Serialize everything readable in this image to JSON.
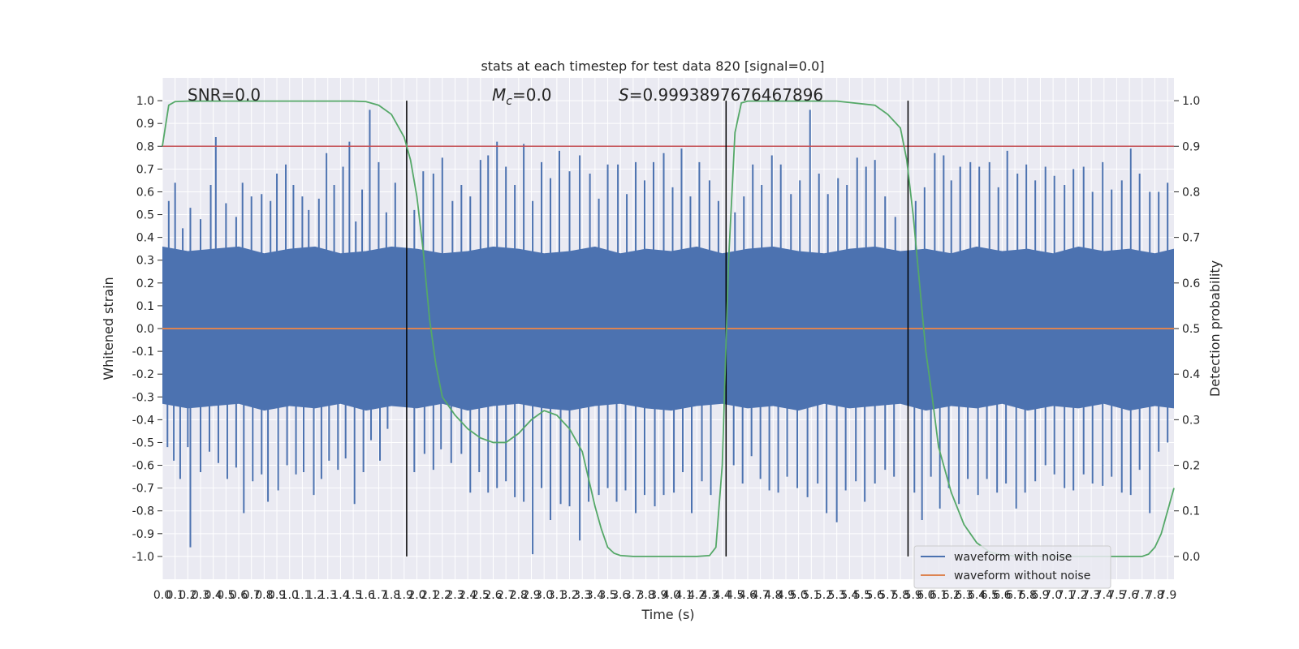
{
  "chart_data": {
    "type": "line",
    "title": "stats at each timestep for test data 820 [signal=0.0]",
    "xlabel": "Time (s)",
    "ylabel": "Whitened strain",
    "y2label": "Detection probability",
    "xlim": [
      0.0,
      7.95
    ],
    "ylim": [
      -1.1,
      1.1
    ],
    "y2lim": [
      -0.05,
      1.05
    ],
    "x_ticks": [
      "0.0",
      "0.1",
      "0.2",
      "0.3",
      "0.4",
      "0.5",
      "0.6",
      "0.7",
      "0.8",
      "0.9",
      "1.0",
      "1.1",
      "1.2",
      "1.3",
      "1.4",
      "1.5",
      "1.6",
      "1.7",
      "1.8",
      "1.9",
      "2.0",
      "2.1",
      "2.2",
      "2.3",
      "2.4",
      "2.5",
      "2.6",
      "2.7",
      "2.8",
      "2.9",
      "3.0",
      "3.1",
      "3.2",
      "3.3",
      "3.4",
      "3.5",
      "3.6",
      "3.7",
      "3.8",
      "3.9",
      "4.0",
      "4.1",
      "4.2",
      "4.3",
      "4.4",
      "4.5",
      "4.6",
      "4.7",
      "4.8",
      "4.9",
      "5.0",
      "5.1",
      "5.2",
      "5.3",
      "5.4",
      "5.5",
      "5.6",
      "5.7",
      "5.8",
      "5.9",
      "6.0",
      "6.1",
      "6.2",
      "6.3",
      "6.4",
      "6.5",
      "6.6",
      "6.7",
      "6.8",
      "6.9",
      "7.0",
      "7.1",
      "7.2",
      "7.3",
      "7.4",
      "7.5",
      "7.6",
      "7.7",
      "7.8",
      "7.9"
    ],
    "y_ticks": [
      "1.0",
      "0.9",
      "0.8",
      "0.7",
      "0.6",
      "0.5",
      "0.4",
      "0.3",
      "0.2",
      "0.1",
      "0.0",
      "-0.1",
      "-0.2",
      "-0.3",
      "-0.4",
      "-0.5",
      "-0.6",
      "-0.7",
      "-0.8",
      "-0.9",
      "-1.0"
    ],
    "y2_ticks": [
      "1.0",
      "0.9",
      "0.8",
      "0.7",
      "0.6",
      "0.5",
      "0.4",
      "0.3",
      "0.2",
      "0.1",
      "0.0"
    ],
    "annotations": {
      "snr": "SNR=0.0",
      "mc_symbol": "M",
      "mc_sub": "c",
      "mc_value": "=0.0",
      "s_symbol": "S",
      "s_value": "=0.9993897676467896"
    },
    "threshold": {
      "axis": "y2",
      "value": 0.9,
      "color": "#c44e52"
    },
    "vlines": [
      1.92,
      4.43,
      5.86
    ],
    "noise_envelope": {
      "x": [
        0.0,
        0.2,
        0.4,
        0.6,
        0.8,
        1.0,
        1.2,
        1.4,
        1.6,
        1.8,
        2.0,
        2.2,
        2.4,
        2.6,
        2.8,
        3.0,
        3.2,
        3.4,
        3.6,
        3.8,
        4.0,
        4.2,
        4.4,
        4.6,
        4.8,
        5.0,
        5.2,
        5.4,
        5.6,
        5.8,
        6.0,
        6.2,
        6.4,
        6.6,
        6.8,
        7.0,
        7.2,
        7.4,
        7.6,
        7.8,
        7.95
      ],
      "upper": [
        0.36,
        0.34,
        0.35,
        0.36,
        0.33,
        0.35,
        0.36,
        0.33,
        0.34,
        0.36,
        0.35,
        0.33,
        0.34,
        0.36,
        0.35,
        0.33,
        0.34,
        0.36,
        0.33,
        0.35,
        0.34,
        0.36,
        0.33,
        0.35,
        0.36,
        0.34,
        0.33,
        0.35,
        0.36,
        0.34,
        0.35,
        0.33,
        0.36,
        0.34,
        0.35,
        0.33,
        0.36,
        0.34,
        0.35,
        0.33,
        0.35
      ],
      "lower": [
        -0.33,
        -0.35,
        -0.34,
        -0.33,
        -0.36,
        -0.34,
        -0.35,
        -0.33,
        -0.36,
        -0.34,
        -0.35,
        -0.33,
        -0.36,
        -0.34,
        -0.33,
        -0.35,
        -0.36,
        -0.34,
        -0.33,
        -0.35,
        -0.36,
        -0.34,
        -0.33,
        -0.35,
        -0.34,
        -0.36,
        -0.33,
        -0.35,
        -0.34,
        -0.33,
        -0.36,
        -0.34,
        -0.35,
        -0.33,
        -0.36,
        -0.34,
        -0.35,
        -0.33,
        -0.36,
        -0.34,
        -0.35
      ]
    },
    "noise_spikes_up": [
      [
        0.05,
        0.56
      ],
      [
        0.1,
        0.64
      ],
      [
        0.16,
        0.44
      ],
      [
        0.22,
        0.53
      ],
      [
        0.3,
        0.48
      ],
      [
        0.38,
        0.63
      ],
      [
        0.42,
        0.84
      ],
      [
        0.5,
        0.55
      ],
      [
        0.58,
        0.49
      ],
      [
        0.63,
        0.64
      ],
      [
        0.7,
        0.58
      ],
      [
        0.78,
        0.59
      ],
      [
        0.85,
        0.56
      ],
      [
        0.9,
        0.68
      ],
      [
        0.97,
        0.72
      ],
      [
        1.03,
        0.63
      ],
      [
        1.1,
        0.58
      ],
      [
        1.15,
        0.52
      ],
      [
        1.23,
        0.57
      ],
      [
        1.29,
        0.77
      ],
      [
        1.35,
        0.63
      ],
      [
        1.42,
        0.71
      ],
      [
        1.47,
        0.82
      ],
      [
        1.52,
        0.47
      ],
      [
        1.57,
        0.61
      ],
      [
        1.63,
        0.96
      ],
      [
        1.7,
        0.73
      ],
      [
        1.76,
        0.51
      ],
      [
        1.83,
        0.64
      ],
      [
        1.98,
        0.52
      ],
      [
        2.05,
        0.69
      ],
      [
        2.13,
        0.68
      ],
      [
        2.2,
        0.75
      ],
      [
        2.28,
        0.56
      ],
      [
        2.35,
        0.63
      ],
      [
        2.42,
        0.58
      ],
      [
        2.5,
        0.74
      ],
      [
        2.56,
        0.76
      ],
      [
        2.63,
        0.82
      ],
      [
        2.7,
        0.71
      ],
      [
        2.77,
        0.63
      ],
      [
        2.84,
        0.81
      ],
      [
        2.91,
        0.56
      ],
      [
        2.98,
        0.73
      ],
      [
        3.05,
        0.66
      ],
      [
        3.12,
        0.78
      ],
      [
        3.2,
        0.69
      ],
      [
        3.28,
        0.76
      ],
      [
        3.36,
        0.68
      ],
      [
        3.43,
        0.57
      ],
      [
        3.5,
        0.72
      ],
      [
        3.58,
        0.72
      ],
      [
        3.65,
        0.59
      ],
      [
        3.72,
        0.73
      ],
      [
        3.79,
        0.65
      ],
      [
        3.86,
        0.73
      ],
      [
        3.94,
        0.77
      ],
      [
        4.01,
        0.62
      ],
      [
        4.08,
        0.79
      ],
      [
        4.15,
        0.58
      ],
      [
        4.22,
        0.73
      ],
      [
        4.3,
        0.65
      ],
      [
        4.37,
        0.56
      ],
      [
        4.5,
        0.51
      ],
      [
        4.57,
        0.58
      ],
      [
        4.64,
        0.72
      ],
      [
        4.71,
        0.63
      ],
      [
        4.79,
        0.76
      ],
      [
        4.86,
        0.72
      ],
      [
        4.94,
        0.59
      ],
      [
        5.01,
        0.65
      ],
      [
        5.09,
        0.96
      ],
      [
        5.16,
        0.68
      ],
      [
        5.23,
        0.59
      ],
      [
        5.31,
        0.66
      ],
      [
        5.38,
        0.63
      ],
      [
        5.46,
        0.75
      ],
      [
        5.53,
        0.71
      ],
      [
        5.6,
        0.74
      ],
      [
        5.68,
        0.58
      ],
      [
        5.76,
        0.49
      ],
      [
        5.92,
        0.56
      ],
      [
        5.99,
        0.62
      ],
      [
        6.07,
        0.77
      ],
      [
        6.14,
        0.76
      ],
      [
        6.2,
        0.65
      ],
      [
        6.27,
        0.71
      ],
      [
        6.35,
        0.73
      ],
      [
        6.42,
        0.71
      ],
      [
        6.5,
        0.73
      ],
      [
        6.57,
        0.62
      ],
      [
        6.64,
        0.78
      ],
      [
        6.72,
        0.68
      ],
      [
        6.79,
        0.72
      ],
      [
        6.86,
        0.65
      ],
      [
        6.94,
        0.71
      ],
      [
        7.01,
        0.67
      ],
      [
        7.09,
        0.63
      ],
      [
        7.16,
        0.7
      ],
      [
        7.24,
        0.71
      ],
      [
        7.31,
        0.6
      ],
      [
        7.39,
        0.73
      ],
      [
        7.46,
        0.61
      ],
      [
        7.54,
        0.65
      ],
      [
        7.61,
        0.79
      ],
      [
        7.68,
        0.68
      ],
      [
        7.76,
        0.6
      ],
      [
        7.83,
        0.6
      ],
      [
        7.9,
        0.64
      ]
    ],
    "noise_spikes_down": [
      [
        0.04,
        -0.52
      ],
      [
        0.09,
        -0.58
      ],
      [
        0.14,
        -0.66
      ],
      [
        0.2,
        -0.52
      ],
      [
        0.22,
        -0.96
      ],
      [
        0.3,
        -0.63
      ],
      [
        0.37,
        -0.54
      ],
      [
        0.44,
        -0.59
      ],
      [
        0.51,
        -0.66
      ],
      [
        0.58,
        -0.61
      ],
      [
        0.64,
        -0.81
      ],
      [
        0.71,
        -0.67
      ],
      [
        0.78,
        -0.64
      ],
      [
        0.83,
        -0.76
      ],
      [
        0.91,
        -0.71
      ],
      [
        0.98,
        -0.6
      ],
      [
        1.05,
        -0.64
      ],
      [
        1.11,
        -0.63
      ],
      [
        1.19,
        -0.73
      ],
      [
        1.25,
        -0.66
      ],
      [
        1.31,
        -0.58
      ],
      [
        1.38,
        -0.62
      ],
      [
        1.44,
        -0.57
      ],
      [
        1.51,
        -0.77
      ],
      [
        1.58,
        -0.63
      ],
      [
        1.64,
        -0.49
      ],
      [
        1.71,
        -0.58
      ],
      [
        1.77,
        -0.44
      ],
      [
        1.98,
        -0.63
      ],
      [
        2.06,
        -0.55
      ],
      [
        2.13,
        -0.62
      ],
      [
        2.19,
        -0.53
      ],
      [
        2.27,
        -0.59
      ],
      [
        2.35,
        -0.55
      ],
      [
        2.42,
        -0.72
      ],
      [
        2.49,
        -0.63
      ],
      [
        2.56,
        -0.72
      ],
      [
        2.63,
        -0.7
      ],
      [
        2.7,
        -0.67
      ],
      [
        2.77,
        -0.74
      ],
      [
        2.84,
        -0.76
      ],
      [
        2.91,
        -0.99
      ],
      [
        2.98,
        -0.7
      ],
      [
        3.05,
        -0.84
      ],
      [
        3.13,
        -0.77
      ],
      [
        3.2,
        -0.78
      ],
      [
        3.28,
        -0.93
      ],
      [
        3.35,
        -0.76
      ],
      [
        3.43,
        -0.73
      ],
      [
        3.5,
        -0.7
      ],
      [
        3.57,
        -0.76
      ],
      [
        3.64,
        -0.71
      ],
      [
        3.72,
        -0.81
      ],
      [
        3.79,
        -0.73
      ],
      [
        3.87,
        -0.78
      ],
      [
        3.94,
        -0.73
      ],
      [
        4.02,
        -0.72
      ],
      [
        4.09,
        -0.63
      ],
      [
        4.16,
        -0.81
      ],
      [
        4.24,
        -0.67
      ],
      [
        4.31,
        -0.73
      ],
      [
        4.49,
        -0.6
      ],
      [
        4.56,
        -0.68
      ],
      [
        4.63,
        -0.56
      ],
      [
        4.7,
        -0.66
      ],
      [
        4.77,
        -0.71
      ],
      [
        4.84,
        -0.72
      ],
      [
        4.91,
        -0.65
      ],
      [
        4.99,
        -0.7
      ],
      [
        5.07,
        -0.74
      ],
      [
        5.15,
        -0.68
      ],
      [
        5.22,
        -0.81
      ],
      [
        5.3,
        -0.85
      ],
      [
        5.37,
        -0.71
      ],
      [
        5.45,
        -0.67
      ],
      [
        5.52,
        -0.76
      ],
      [
        5.6,
        -0.68
      ],
      [
        5.68,
        -0.62
      ],
      [
        5.75,
        -0.65
      ],
      [
        5.91,
        -0.72
      ],
      [
        5.97,
        -0.84
      ],
      [
        6.04,
        -0.65
      ],
      [
        6.11,
        -0.79
      ],
      [
        6.18,
        -0.7
      ],
      [
        6.26,
        -0.77
      ],
      [
        6.33,
        -0.66
      ],
      [
        6.41,
        -0.73
      ],
      [
        6.48,
        -0.66
      ],
      [
        6.56,
        -0.72
      ],
      [
        6.63,
        -0.68
      ],
      [
        6.71,
        -0.79
      ],
      [
        6.78,
        -0.72
      ],
      [
        6.86,
        -0.67
      ],
      [
        6.94,
        -0.6
      ],
      [
        7.01,
        -0.64
      ],
      [
        7.09,
        -0.7
      ],
      [
        7.16,
        -0.71
      ],
      [
        7.24,
        -0.64
      ],
      [
        7.31,
        -0.68
      ],
      [
        7.39,
        -0.69
      ],
      [
        7.46,
        -0.65
      ],
      [
        7.54,
        -0.72
      ],
      [
        7.61,
        -0.73
      ],
      [
        7.68,
        -0.62
      ],
      [
        7.76,
        -0.81
      ],
      [
        7.83,
        -0.54
      ],
      [
        7.9,
        -0.5
      ]
    ],
    "series": [
      {
        "name": "waveform with noise",
        "color": "#4c72b0",
        "axis": "y"
      },
      {
        "name": "waveform without noise",
        "color": "#dd8452",
        "axis": "y",
        "x": [
          0.0,
          7.95
        ],
        "values": [
          0.0,
          0.0
        ]
      },
      {
        "color": "#55a868",
        "axis": "y2",
        "x": [
          0.0,
          0.05,
          0.1,
          0.2,
          0.4,
          0.8,
          1.2,
          1.5,
          1.6,
          1.7,
          1.8,
          1.9,
          1.95,
          2.0,
          2.05,
          2.1,
          2.15,
          2.2,
          2.3,
          2.4,
          2.5,
          2.6,
          2.7,
          2.8,
          2.9,
          3.0,
          3.1,
          3.2,
          3.3,
          3.35,
          3.4,
          3.45,
          3.5,
          3.55,
          3.6,
          3.7,
          3.8,
          3.9,
          4.0,
          4.1,
          4.2,
          4.3,
          4.35,
          4.4,
          4.45,
          4.5,
          4.55,
          4.6,
          4.7,
          4.8,
          5.0,
          5.3,
          5.6,
          5.7,
          5.8,
          5.85,
          5.9,
          5.95,
          6.0,
          6.05,
          6.1,
          6.2,
          6.3,
          6.4,
          6.5,
          6.6,
          6.7,
          6.8,
          6.9,
          7.0,
          7.1,
          7.2,
          7.3,
          7.4,
          7.5,
          7.6,
          7.7,
          7.75,
          7.8,
          7.85,
          7.9,
          7.95
        ],
        "values": [
          0.9,
          0.99,
          0.998,
          0.999,
          0.999,
          0.999,
          0.999,
          0.999,
          0.998,
          0.99,
          0.97,
          0.92,
          0.87,
          0.79,
          0.67,
          0.52,
          0.42,
          0.35,
          0.31,
          0.28,
          0.26,
          0.25,
          0.25,
          0.27,
          0.3,
          0.32,
          0.31,
          0.28,
          0.23,
          0.17,
          0.11,
          0.06,
          0.02,
          0.007,
          0.002,
          0.0,
          0.0,
          0.0,
          0.0,
          0.0,
          0.0,
          0.002,
          0.02,
          0.2,
          0.65,
          0.93,
          0.995,
          0.999,
          0.999,
          0.999,
          0.999,
          0.999,
          0.99,
          0.97,
          0.94,
          0.87,
          0.75,
          0.6,
          0.45,
          0.35,
          0.24,
          0.14,
          0.07,
          0.03,
          0.01,
          0.003,
          0.001,
          0.0,
          0.0,
          0.0,
          0.0,
          0.0,
          0.0,
          0.0,
          0.0,
          0.0,
          0.0,
          0.005,
          0.02,
          0.05,
          0.1,
          0.15
        ]
      }
    ],
    "legend": {
      "placement": "lower-right"
    },
    "grid": true
  }
}
